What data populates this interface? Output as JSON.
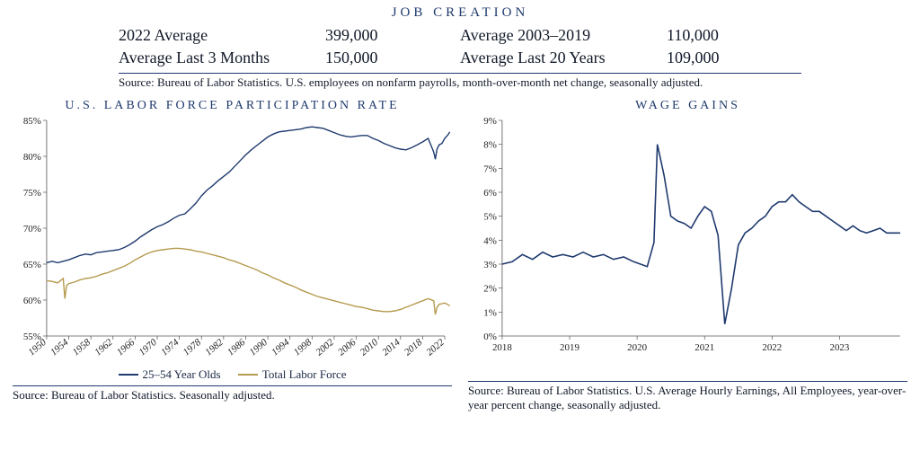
{
  "job_creation": {
    "title": "JOB CREATION",
    "rows": [
      {
        "l1": "2022 Average",
        "v1": "399,000",
        "l2": "Average 2003–2019",
        "v2": "110,000"
      },
      {
        "l1": "Average Last 3 Months",
        "v1": "150,000",
        "l2": "Average Last 20 Years",
        "v2": "109,000"
      }
    ],
    "source": "Source: Bureau of Labor Statistics. U.S. employees on nonfarm payrolls, month-over-month net change, seasonally adjusted."
  },
  "labor_chart": {
    "title": "U.S. LABOR FORCE PARTICIPATION RATE",
    "type": "line",
    "x_min": 1950,
    "x_max": 2022,
    "y_min": 55,
    "y_max": 85,
    "y_ticks": [
      55,
      60,
      65,
      70,
      75,
      80,
      85
    ],
    "y_tick_labels": [
      "55%",
      "60%",
      "65%",
      "70%",
      "75%",
      "80%",
      "85%"
    ],
    "x_ticks": [
      1950,
      1954,
      1958,
      1962,
      1966,
      1970,
      1974,
      1978,
      1982,
      1986,
      1990,
      1994,
      1998,
      2002,
      2006,
      2010,
      2014,
      2018,
      2022
    ],
    "background_color": "#ffffff",
    "axis_color": "#555555",
    "label_fontsize": 11,
    "line_width": 1.4,
    "series": [
      {
        "name": "25–54 Year Olds",
        "color": "#1f3a6e",
        "points": [
          [
            1950,
            65.2
          ],
          [
            1951,
            65.4
          ],
          [
            1952,
            65.2
          ],
          [
            1953,
            65.4
          ],
          [
            1954,
            65.6
          ],
          [
            1955,
            65.9
          ],
          [
            1956,
            66.2
          ],
          [
            1957,
            66.4
          ],
          [
            1958,
            66.3
          ],
          [
            1959,
            66.6
          ],
          [
            1960,
            66.7
          ],
          [
            1961,
            66.8
          ],
          [
            1962,
            66.9
          ],
          [
            1963,
            67.0
          ],
          [
            1964,
            67.3
          ],
          [
            1965,
            67.7
          ],
          [
            1966,
            68.2
          ],
          [
            1967,
            68.8
          ],
          [
            1968,
            69.3
          ],
          [
            1969,
            69.8
          ],
          [
            1970,
            70.2
          ],
          [
            1971,
            70.5
          ],
          [
            1972,
            70.9
          ],
          [
            1973,
            71.4
          ],
          [
            1974,
            71.8
          ],
          [
            1975,
            72.0
          ],
          [
            1976,
            72.7
          ],
          [
            1977,
            73.5
          ],
          [
            1978,
            74.5
          ],
          [
            1979,
            75.3
          ],
          [
            1980,
            75.9
          ],
          [
            1981,
            76.6
          ],
          [
            1982,
            77.2
          ],
          [
            1983,
            77.8
          ],
          [
            1984,
            78.6
          ],
          [
            1985,
            79.4
          ],
          [
            1986,
            80.2
          ],
          [
            1987,
            80.9
          ],
          [
            1988,
            81.5
          ],
          [
            1989,
            82.1
          ],
          [
            1990,
            82.7
          ],
          [
            1991,
            83.1
          ],
          [
            1992,
            83.4
          ],
          [
            1993,
            83.5
          ],
          [
            1994,
            83.6
          ],
          [
            1995,
            83.7
          ],
          [
            1996,
            83.8
          ],
          [
            1997,
            84.0
          ],
          [
            1998,
            84.1
          ],
          [
            1999,
            84.0
          ],
          [
            2000,
            83.9
          ],
          [
            2001,
            83.6
          ],
          [
            2002,
            83.3
          ],
          [
            2003,
            83.0
          ],
          [
            2004,
            82.8
          ],
          [
            2005,
            82.7
          ],
          [
            2006,
            82.8
          ],
          [
            2007,
            82.9
          ],
          [
            2008,
            82.9
          ],
          [
            2009,
            82.5
          ],
          [
            2010,
            82.2
          ],
          [
            2011,
            81.8
          ],
          [
            2012,
            81.5
          ],
          [
            2013,
            81.2
          ],
          [
            2014,
            81.0
          ],
          [
            2015,
            80.9
          ],
          [
            2016,
            81.2
          ],
          [
            2017,
            81.6
          ],
          [
            2018,
            82.0
          ],
          [
            2019,
            82.5
          ],
          [
            2020,
            80.6
          ],
          [
            2020.3,
            79.6
          ],
          [
            2020.6,
            81.0
          ],
          [
            2021,
            81.6
          ],
          [
            2021.5,
            81.8
          ],
          [
            2022,
            82.5
          ],
          [
            2022.6,
            83.0
          ],
          [
            2022.9,
            83.4
          ]
        ]
      },
      {
        "name": "Total Labor Force",
        "color": "#b59a4f",
        "points": [
          [
            1950,
            62.7
          ],
          [
            1951,
            62.6
          ],
          [
            1952,
            62.4
          ],
          [
            1953,
            63.0
          ],
          [
            1953.3,
            60.2
          ],
          [
            1953.6,
            62.0
          ],
          [
            1954,
            62.3
          ],
          [
            1955,
            62.5
          ],
          [
            1956,
            62.8
          ],
          [
            1957,
            63.0
          ],
          [
            1958,
            63.1
          ],
          [
            1959,
            63.3
          ],
          [
            1960,
            63.6
          ],
          [
            1961,
            63.8
          ],
          [
            1962,
            64.1
          ],
          [
            1963,
            64.4
          ],
          [
            1964,
            64.7
          ],
          [
            1965,
            65.1
          ],
          [
            1966,
            65.6
          ],
          [
            1967,
            66.0
          ],
          [
            1968,
            66.4
          ],
          [
            1969,
            66.7
          ],
          [
            1970,
            66.9
          ],
          [
            1971,
            67.0
          ],
          [
            1972,
            67.1
          ],
          [
            1973,
            67.2
          ],
          [
            1974,
            67.2
          ],
          [
            1975,
            67.1
          ],
          [
            1976,
            67.0
          ],
          [
            1977,
            66.8
          ],
          [
            1978,
            66.7
          ],
          [
            1979,
            66.5
          ],
          [
            1980,
            66.3
          ],
          [
            1981,
            66.1
          ],
          [
            1982,
            65.9
          ],
          [
            1983,
            65.6
          ],
          [
            1984,
            65.4
          ],
          [
            1985,
            65.1
          ],
          [
            1986,
            64.8
          ],
          [
            1987,
            64.5
          ],
          [
            1988,
            64.2
          ],
          [
            1989,
            63.8
          ],
          [
            1990,
            63.5
          ],
          [
            1991,
            63.1
          ],
          [
            1992,
            62.8
          ],
          [
            1993,
            62.4
          ],
          [
            1994,
            62.1
          ],
          [
            1995,
            61.8
          ],
          [
            1996,
            61.4
          ],
          [
            1997,
            61.1
          ],
          [
            1998,
            60.8
          ],
          [
            1999,
            60.5
          ],
          [
            2000,
            60.3
          ],
          [
            2001,
            60.1
          ],
          [
            2002,
            59.9
          ],
          [
            2003,
            59.7
          ],
          [
            2004,
            59.5
          ],
          [
            2005,
            59.3
          ],
          [
            2006,
            59.1
          ],
          [
            2007,
            59.0
          ],
          [
            2008,
            58.8
          ],
          [
            2009,
            58.6
          ],
          [
            2010,
            58.5
          ],
          [
            2011,
            58.4
          ],
          [
            2012,
            58.4
          ],
          [
            2013,
            58.5
          ],
          [
            2014,
            58.7
          ],
          [
            2015,
            59.0
          ],
          [
            2016,
            59.3
          ],
          [
            2017,
            59.6
          ],
          [
            2018,
            59.9
          ],
          [
            2019,
            60.2
          ],
          [
            2020,
            59.9
          ],
          [
            2020.3,
            58.0
          ],
          [
            2020.6,
            59.0
          ],
          [
            2021,
            59.4
          ],
          [
            2021.5,
            59.5
          ],
          [
            2022,
            59.6
          ],
          [
            2022.5,
            59.4
          ],
          [
            2022.9,
            59.2
          ]
        ]
      }
    ],
    "legend_items": [
      {
        "label": "25–54 Year Olds",
        "color": "#1f3a6e"
      },
      {
        "label": "Total Labor Force",
        "color": "#b59a4f"
      }
    ],
    "source": "Source: Bureau of Labor Statistics. Seasonally adjusted."
  },
  "wage_chart": {
    "title": "WAGE GAINS",
    "type": "line",
    "x_min": 2018,
    "x_max": 2023.9,
    "y_min": 0,
    "y_max": 9,
    "y_ticks": [
      0,
      1,
      2,
      3,
      4,
      5,
      6,
      7,
      8,
      9
    ],
    "y_tick_labels": [
      "0%",
      "1%",
      "2%",
      "3%",
      "4%",
      "5%",
      "6%",
      "7%",
      "8%",
      "9%"
    ],
    "x_ticks": [
      2018,
      2019,
      2020,
      2021,
      2022,
      2023
    ],
    "background_color": "#ffffff",
    "axis_color": "#555555",
    "label_fontsize": 11,
    "line_width": 1.6,
    "series": [
      {
        "name": "Wage gains",
        "color": "#1f3a6e",
        "points": [
          [
            2018.0,
            3.0
          ],
          [
            2018.15,
            3.1
          ],
          [
            2018.3,
            3.4
          ],
          [
            2018.45,
            3.2
          ],
          [
            2018.6,
            3.5
          ],
          [
            2018.75,
            3.3
          ],
          [
            2018.9,
            3.4
          ],
          [
            2019.05,
            3.3
          ],
          [
            2019.2,
            3.5
          ],
          [
            2019.35,
            3.3
          ],
          [
            2019.5,
            3.4
          ],
          [
            2019.65,
            3.2
          ],
          [
            2019.8,
            3.3
          ],
          [
            2019.95,
            3.1
          ],
          [
            2020.05,
            3.0
          ],
          [
            2020.15,
            2.9
          ],
          [
            2020.25,
            3.9
          ],
          [
            2020.3,
            8.0
          ],
          [
            2020.4,
            6.7
          ],
          [
            2020.5,
            5.0
          ],
          [
            2020.6,
            4.8
          ],
          [
            2020.7,
            4.7
          ],
          [
            2020.8,
            4.5
          ],
          [
            2020.9,
            5.0
          ],
          [
            2021.0,
            5.4
          ],
          [
            2021.1,
            5.2
          ],
          [
            2021.2,
            4.2
          ],
          [
            2021.3,
            0.5
          ],
          [
            2021.4,
            2.0
          ],
          [
            2021.5,
            3.8
          ],
          [
            2021.6,
            4.3
          ],
          [
            2021.7,
            4.5
          ],
          [
            2021.8,
            4.8
          ],
          [
            2021.9,
            5.0
          ],
          [
            2022.0,
            5.4
          ],
          [
            2022.1,
            5.6
          ],
          [
            2022.2,
            5.6
          ],
          [
            2022.3,
            5.9
          ],
          [
            2022.4,
            5.6
          ],
          [
            2022.5,
            5.4
          ],
          [
            2022.6,
            5.2
          ],
          [
            2022.7,
            5.2
          ],
          [
            2022.8,
            5.0
          ],
          [
            2022.9,
            4.8
          ],
          [
            2023.0,
            4.6
          ],
          [
            2023.1,
            4.4
          ],
          [
            2023.2,
            4.6
          ],
          [
            2023.3,
            4.4
          ],
          [
            2023.4,
            4.3
          ],
          [
            2023.5,
            4.4
          ],
          [
            2023.6,
            4.5
          ],
          [
            2023.7,
            4.3
          ],
          [
            2023.8,
            4.3
          ],
          [
            2023.9,
            4.3
          ]
        ]
      }
    ],
    "source": "Source: Bureau of Labor Statistics. U.S. Average Hourly Earnings, All Employees, year-over-year percent change, seasonally adjusted."
  }
}
